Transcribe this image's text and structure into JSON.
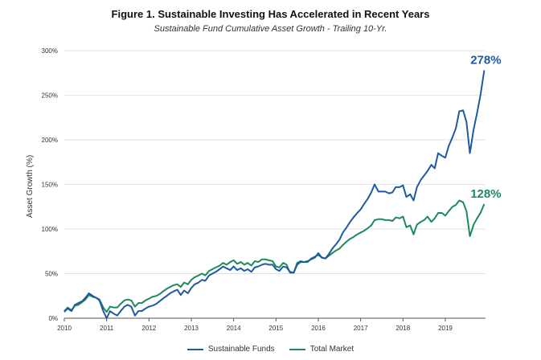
{
  "chart_data": {
    "type": "line",
    "title": "Figure 1. Sustainable Investing Has Accelerated in Recent Years",
    "subtitle": "Sustainable Fund Cumulative Asset Growth - Trailing 10-Yr.",
    "xlabel": "",
    "ylabel": "Asset Growth (%)",
    "xlim": [
      2010.0,
      2019.95
    ],
    "ylim": [
      0,
      300
    ],
    "grid": "horizontal",
    "legend_position": "bottom",
    "x_ticks": [
      "2010",
      "2011",
      "2012",
      "2013",
      "2014",
      "2015",
      "2016",
      "2017",
      "2018",
      "2019"
    ],
    "y_ticks": [
      "0%",
      "50%",
      "100%",
      "150%",
      "200%",
      "250%",
      "300%"
    ],
    "series": [
      {
        "name": "Sustainable Funds",
        "color": "#1f5aa0",
        "end_label": "278%",
        "points": [
          [
            2010.0,
            7
          ],
          [
            2010.08,
            11
          ],
          [
            2010.17,
            8
          ],
          [
            2010.25,
            15
          ],
          [
            2010.33,
            17
          ],
          [
            2010.42,
            19
          ],
          [
            2010.5,
            23
          ],
          [
            2010.58,
            28
          ],
          [
            2010.67,
            25
          ],
          [
            2010.75,
            23
          ],
          [
            2010.83,
            20
          ],
          [
            2010.92,
            8
          ],
          [
            2011.0,
            0
          ],
          [
            2011.08,
            8
          ],
          [
            2011.17,
            5
          ],
          [
            2011.25,
            3
          ],
          [
            2011.33,
            8
          ],
          [
            2011.42,
            13
          ],
          [
            2011.5,
            15
          ],
          [
            2011.58,
            13
          ],
          [
            2011.67,
            3
          ],
          [
            2011.75,
            8
          ],
          [
            2011.83,
            8
          ],
          [
            2011.92,
            11
          ],
          [
            2012.0,
            13
          ],
          [
            2012.08,
            14
          ],
          [
            2012.17,
            16
          ],
          [
            2012.25,
            19
          ],
          [
            2012.33,
            22
          ],
          [
            2012.42,
            25
          ],
          [
            2012.5,
            28
          ],
          [
            2012.58,
            30
          ],
          [
            2012.67,
            32
          ],
          [
            2012.75,
            26
          ],
          [
            2012.83,
            31
          ],
          [
            2012.92,
            28
          ],
          [
            2013.0,
            34
          ],
          [
            2013.08,
            38
          ],
          [
            2013.17,
            40
          ],
          [
            2013.25,
            43
          ],
          [
            2013.33,
            42
          ],
          [
            2013.42,
            48
          ],
          [
            2013.5,
            50
          ],
          [
            2013.58,
            52
          ],
          [
            2013.67,
            55
          ],
          [
            2013.75,
            58
          ],
          [
            2013.83,
            56
          ],
          [
            2013.92,
            54
          ],
          [
            2014.0,
            58
          ],
          [
            2014.08,
            54
          ],
          [
            2014.17,
            56
          ],
          [
            2014.25,
            53
          ],
          [
            2014.33,
            55
          ],
          [
            2014.42,
            52
          ],
          [
            2014.5,
            57
          ],
          [
            2014.58,
            58
          ],
          [
            2014.67,
            60
          ],
          [
            2014.75,
            61
          ],
          [
            2014.83,
            60
          ],
          [
            2014.92,
            60
          ],
          [
            2015.0,
            55
          ],
          [
            2015.08,
            53
          ],
          [
            2015.17,
            58
          ],
          [
            2015.25,
            57
          ],
          [
            2015.33,
            52
          ],
          [
            2015.42,
            51
          ],
          [
            2015.5,
            60
          ],
          [
            2015.58,
            63
          ],
          [
            2015.67,
            63
          ],
          [
            2015.75,
            64
          ],
          [
            2015.83,
            66
          ],
          [
            2015.92,
            68
          ],
          [
            2016.0,
            73
          ],
          [
            2016.08,
            68
          ],
          [
            2016.17,
            67
          ],
          [
            2016.25,
            72
          ],
          [
            2016.33,
            78
          ],
          [
            2016.42,
            83
          ],
          [
            2016.5,
            88
          ],
          [
            2016.58,
            96
          ],
          [
            2016.67,
            102
          ],
          [
            2016.75,
            108
          ],
          [
            2016.83,
            113
          ],
          [
            2016.92,
            118
          ],
          [
            2017.0,
            122
          ],
          [
            2017.08,
            128
          ],
          [
            2017.17,
            134
          ],
          [
            2017.25,
            141
          ],
          [
            2017.33,
            150
          ],
          [
            2017.42,
            142
          ],
          [
            2017.5,
            142
          ],
          [
            2017.58,
            142
          ],
          [
            2017.67,
            140
          ],
          [
            2017.75,
            141
          ],
          [
            2017.83,
            147
          ],
          [
            2017.92,
            147
          ],
          [
            2018.0,
            149
          ],
          [
            2018.08,
            136
          ],
          [
            2018.17,
            139
          ],
          [
            2018.25,
            132
          ],
          [
            2018.33,
            147
          ],
          [
            2018.42,
            155
          ],
          [
            2018.5,
            160
          ],
          [
            2018.58,
            165
          ],
          [
            2018.67,
            172
          ],
          [
            2018.75,
            168
          ],
          [
            2018.83,
            185
          ],
          [
            2018.92,
            182
          ],
          [
            2019.0,
            180
          ],
          [
            2019.08,
            193
          ],
          [
            2019.17,
            203
          ],
          [
            2019.25,
            213
          ],
          [
            2019.33,
            232
          ],
          [
            2019.42,
            233
          ],
          [
            2019.5,
            220
          ],
          [
            2019.58,
            185
          ],
          [
            2019.67,
            212
          ],
          [
            2019.75,
            230
          ],
          [
            2019.83,
            250
          ],
          [
            2019.92,
            278
          ]
        ]
      },
      {
        "name": "Total Market",
        "color": "#1d8a5a",
        "end_label": "128%",
        "points": [
          [
            2010.0,
            8
          ],
          [
            2010.08,
            12
          ],
          [
            2010.17,
            9
          ],
          [
            2010.25,
            14
          ],
          [
            2010.33,
            15
          ],
          [
            2010.42,
            18
          ],
          [
            2010.5,
            21
          ],
          [
            2010.58,
            26
          ],
          [
            2010.67,
            24
          ],
          [
            2010.75,
            23
          ],
          [
            2010.83,
            21
          ],
          [
            2010.92,
            12
          ],
          [
            2011.0,
            7
          ],
          [
            2011.08,
            13
          ],
          [
            2011.17,
            12
          ],
          [
            2011.25,
            12
          ],
          [
            2011.33,
            16
          ],
          [
            2011.42,
            20
          ],
          [
            2011.5,
            21
          ],
          [
            2011.58,
            20
          ],
          [
            2011.67,
            13
          ],
          [
            2011.75,
            17
          ],
          [
            2011.83,
            17
          ],
          [
            2011.92,
            20
          ],
          [
            2012.0,
            22
          ],
          [
            2012.08,
            24
          ],
          [
            2012.17,
            25
          ],
          [
            2012.25,
            27
          ],
          [
            2012.33,
            30
          ],
          [
            2012.42,
            33
          ],
          [
            2012.5,
            35
          ],
          [
            2012.58,
            37
          ],
          [
            2012.67,
            38
          ],
          [
            2012.75,
            35
          ],
          [
            2012.83,
            40
          ],
          [
            2012.92,
            38
          ],
          [
            2013.0,
            43
          ],
          [
            2013.08,
            46
          ],
          [
            2013.17,
            48
          ],
          [
            2013.25,
            50
          ],
          [
            2013.33,
            48
          ],
          [
            2013.42,
            53
          ],
          [
            2013.5,
            55
          ],
          [
            2013.58,
            57
          ],
          [
            2013.67,
            59
          ],
          [
            2013.75,
            62
          ],
          [
            2013.83,
            60
          ],
          [
            2013.92,
            63
          ],
          [
            2014.0,
            65
          ],
          [
            2014.08,
            61
          ],
          [
            2014.17,
            63
          ],
          [
            2014.25,
            60
          ],
          [
            2014.33,
            62
          ],
          [
            2014.42,
            59
          ],
          [
            2014.5,
            64
          ],
          [
            2014.58,
            63
          ],
          [
            2014.67,
            66
          ],
          [
            2014.75,
            66
          ],
          [
            2014.83,
            65
          ],
          [
            2014.92,
            64
          ],
          [
            2015.0,
            58
          ],
          [
            2015.08,
            57
          ],
          [
            2015.17,
            62
          ],
          [
            2015.25,
            60
          ],
          [
            2015.33,
            51
          ],
          [
            2015.42,
            51
          ],
          [
            2015.5,
            62
          ],
          [
            2015.58,
            64
          ],
          [
            2015.67,
            63
          ],
          [
            2015.75,
            63
          ],
          [
            2015.83,
            67
          ],
          [
            2015.92,
            69
          ],
          [
            2016.0,
            71
          ],
          [
            2016.08,
            68
          ],
          [
            2016.17,
            67
          ],
          [
            2016.25,
            70
          ],
          [
            2016.33,
            73
          ],
          [
            2016.42,
            76
          ],
          [
            2016.5,
            78
          ],
          [
            2016.58,
            82
          ],
          [
            2016.67,
            86
          ],
          [
            2016.75,
            89
          ],
          [
            2016.83,
            91
          ],
          [
            2016.92,
            94
          ],
          [
            2017.0,
            96
          ],
          [
            2017.08,
            98
          ],
          [
            2017.17,
            101
          ],
          [
            2017.25,
            104
          ],
          [
            2017.33,
            110
          ],
          [
            2017.42,
            111
          ],
          [
            2017.5,
            111
          ],
          [
            2017.58,
            110
          ],
          [
            2017.67,
            110
          ],
          [
            2017.75,
            109
          ],
          [
            2017.83,
            113
          ],
          [
            2017.92,
            112
          ],
          [
            2018.0,
            114
          ],
          [
            2018.08,
            102
          ],
          [
            2018.17,
            104
          ],
          [
            2018.25,
            94
          ],
          [
            2018.33,
            105
          ],
          [
            2018.42,
            108
          ],
          [
            2018.5,
            110
          ],
          [
            2018.58,
            114
          ],
          [
            2018.67,
            108
          ],
          [
            2018.75,
            112
          ],
          [
            2018.83,
            118
          ],
          [
            2018.92,
            118
          ],
          [
            2019.0,
            115
          ],
          [
            2019.08,
            120
          ],
          [
            2019.17,
            125
          ],
          [
            2019.25,
            127
          ],
          [
            2019.33,
            132
          ],
          [
            2019.42,
            130
          ],
          [
            2019.5,
            120
          ],
          [
            2019.58,
            92
          ],
          [
            2019.67,
            105
          ],
          [
            2019.75,
            112
          ],
          [
            2019.83,
            118
          ],
          [
            2019.92,
            128
          ]
        ]
      }
    ]
  }
}
